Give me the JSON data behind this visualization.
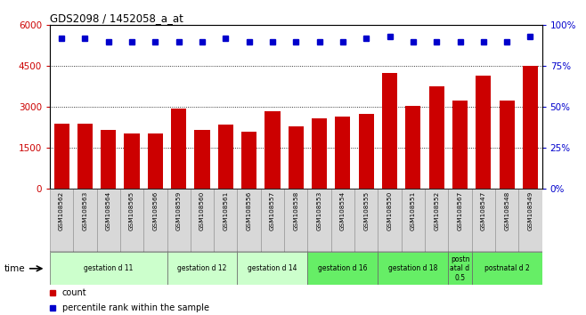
{
  "title": "GDS2098 / 1452058_a_at",
  "samples": [
    "GSM108562",
    "GSM108563",
    "GSM108564",
    "GSM108565",
    "GSM108566",
    "GSM108559",
    "GSM108560",
    "GSM108561",
    "GSM108556",
    "GSM108557",
    "GSM108558",
    "GSM108553",
    "GSM108554",
    "GSM108555",
    "GSM108550",
    "GSM108551",
    "GSM108552",
    "GSM108567",
    "GSM108547",
    "GSM108548",
    "GSM108549"
  ],
  "counts": [
    2400,
    2400,
    2150,
    2050,
    2050,
    2950,
    2150,
    2350,
    2100,
    2850,
    2300,
    2600,
    2650,
    2750,
    4250,
    3050,
    3750,
    3250,
    4150,
    3250,
    4500
  ],
  "percentile_ranks": [
    92,
    92,
    90,
    90,
    90,
    90,
    90,
    92,
    90,
    90,
    90,
    90,
    90,
    92,
    93,
    90,
    90,
    90,
    90,
    90,
    93
  ],
  "bar_color": "#cc0000",
  "dot_color": "#0000cc",
  "ylim_left": [
    0,
    6000
  ],
  "ylim_right": [
    0,
    100
  ],
  "yticks_left": [
    0,
    1500,
    3000,
    4500,
    6000
  ],
  "yticks_right": [
    0,
    25,
    50,
    75,
    100
  ],
  "groups": [
    {
      "label": "gestation d 11",
      "start": 0,
      "end": 4,
      "color": "#ccffcc"
    },
    {
      "label": "gestation d 12",
      "start": 5,
      "end": 7,
      "color": "#ccffcc"
    },
    {
      "label": "gestation d 14",
      "start": 8,
      "end": 10,
      "color": "#ccffcc"
    },
    {
      "label": "gestation d 16",
      "start": 11,
      "end": 13,
      "color": "#66ee66"
    },
    {
      "label": "gestation d 18",
      "start": 14,
      "end": 16,
      "color": "#66ee66"
    },
    {
      "label": "postn\natal d\n0.5",
      "start": 17,
      "end": 17,
      "color": "#66ee66"
    },
    {
      "label": "postnatal d 2",
      "start": 18,
      "end": 20,
      "color": "#66ee66"
    }
  ],
  "legend_count_label": "count",
  "legend_pct_label": "percentile rank within the sample",
  "time_label": "time",
  "sample_bg_color": "#d8d8d8",
  "plot_bg_color": "#ffffff"
}
